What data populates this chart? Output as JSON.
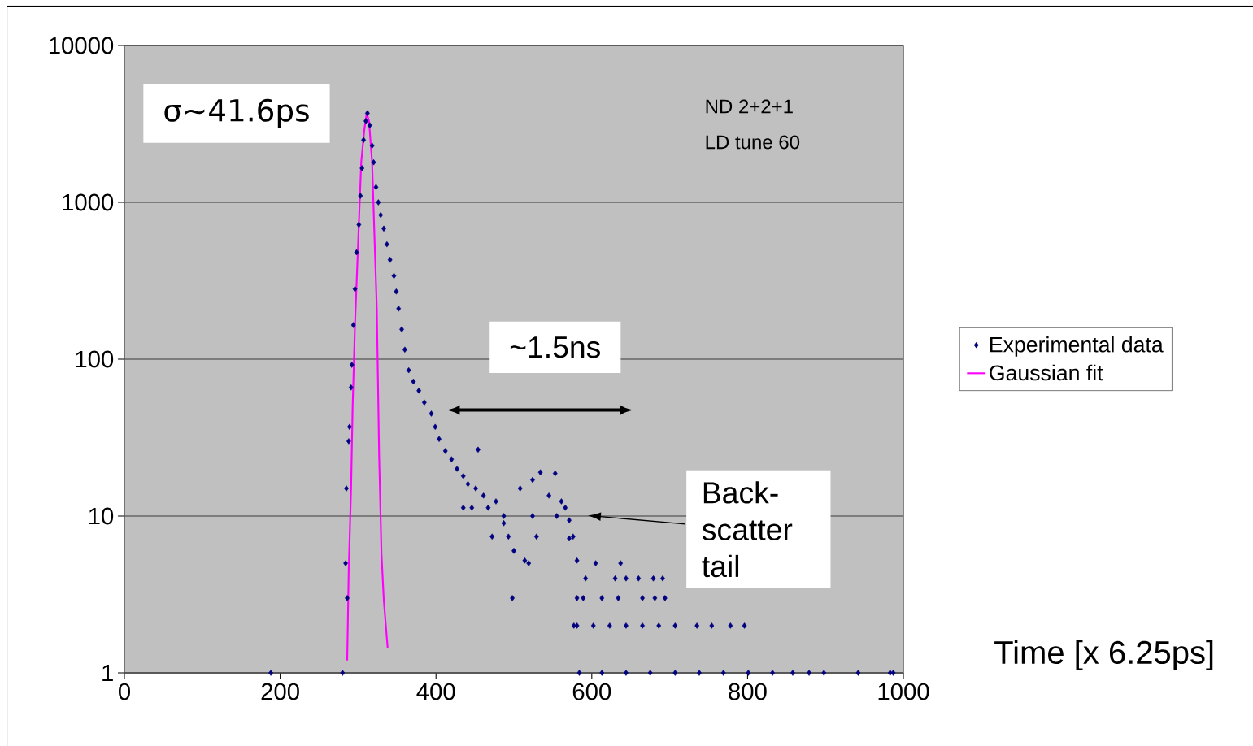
{
  "chart_data": {
    "type": "scatter",
    "xlabel": "Time [x 6.25ps]",
    "xlim": [
      0,
      1000
    ],
    "xticks": [
      0,
      200,
      400,
      600,
      800,
      1000
    ],
    "ylim": [
      1,
      10000
    ],
    "yticks": [
      1,
      10,
      100,
      1000,
      10000
    ],
    "log": "y",
    "grid": "y",
    "legend": "right",
    "series": [
      {
        "name": "Experimental data",
        "marker": "diamond",
        "color": "#000080",
        "x": [
          188,
          280,
          284,
          285,
          286,
          288,
          289,
          291,
          292,
          294,
          296,
          298,
          301,
          303,
          305,
          307,
          310,
          312,
          315,
          318,
          320,
          323,
          326,
          329,
          333,
          337,
          341,
          346,
          349,
          352,
          356,
          360,
          365,
          371,
          378,
          385,
          394,
          399,
          404,
          412,
          420,
          427,
          435,
          441,
          454,
          451,
          461,
          467,
          477,
          446,
          435,
          472,
          487,
          493,
          500,
          514,
          519,
          529,
          498,
          508,
          524,
          534,
          545,
          553,
          561,
          566,
          571,
          571,
          576,
          581,
          581,
          581,
          584,
          605,
          637,
          592,
          630,
          644,
          660,
          679,
          691,
          589,
          613,
          634,
          665,
          681,
          694,
          577,
          602,
          623,
          644,
          665,
          686,
          707,
          735,
          754,
          778,
          796,
          613,
          644,
          675,
          707,
          738,
          769,
          801,
          832,
          858,
          879,
          898,
          942,
          983,
          987,
          487,
          524,
          555
        ],
        "values": [
          1,
          1,
          5,
          15,
          3,
          30,
          37,
          66,
          92,
          165,
          280,
          480,
          720,
          1100,
          1650,
          2500,
          3300,
          3700,
          3100,
          2300,
          1800,
          1250,
          1000,
          830,
          680,
          540,
          430,
          340,
          270,
          210,
          155,
          115,
          85,
          72,
          63,
          53,
          45,
          37,
          31,
          26,
          23,
          20,
          18,
          16,
          26.5,
          15,
          13.5,
          11.3,
          12.4,
          11.3,
          11.3,
          7.4,
          9,
          7.4,
          6,
          5.2,
          5,
          7.4,
          3,
          15,
          17,
          19,
          13.5,
          18.7,
          12.4,
          11.3,
          9.4,
          7.2,
          7.4,
          5.2,
          3,
          2,
          1,
          5,
          5,
          4,
          4,
          4,
          4,
          4,
          4,
          3,
          3,
          3,
          3,
          3,
          3,
          2,
          2,
          2,
          2,
          2,
          2,
          2,
          2,
          2,
          2,
          2,
          1,
          1,
          1,
          1,
          1,
          1,
          1,
          1,
          1,
          1,
          1,
          1,
          1,
          1,
          10,
          10,
          10
        ]
      },
      {
        "name": "Gaussian fit",
        "type": "line",
        "marker": "none",
        "color": "#ff00ff",
        "x": [
          286,
          288,
          291,
          293,
          296,
          300,
          304,
          308,
          311,
          314,
          318,
          321,
          324,
          327,
          330,
          333,
          338
        ],
        "values": [
          1.2,
          4.6,
          15,
          50,
          165,
          540,
          1800,
          2900,
          3700,
          3300,
          1800,
          610,
          210,
          24.5,
          5.8,
          2.9,
          1.43
        ]
      }
    ],
    "annotations": [
      "σ~41.6ps",
      "ND 2+2+1",
      "LD tune 60",
      "~1.5ns",
      "Back-scatter tail"
    ]
  }
}
